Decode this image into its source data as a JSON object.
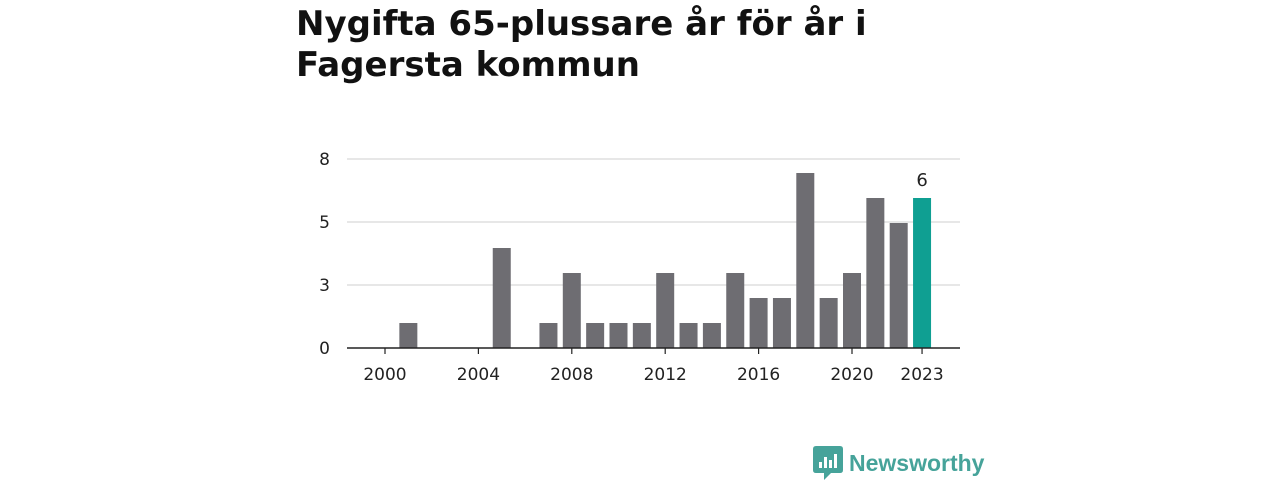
{
  "title": "Nygifta 65-plussare år för år i Fagersta kommun",
  "brand": {
    "name": "Newsworthy",
    "icon": "newsworthy-logo-icon",
    "color": "#46a39a"
  },
  "colors": {
    "bar": "#6e6d72",
    "highlight": "#0f9f92",
    "grid": "#cfcfcf",
    "axis": "#222222",
    "text": "#222222"
  },
  "chart_data": {
    "type": "bar",
    "title": "Nygifta 65-plussare år för år i Fagersta kommun",
    "xlabel": "",
    "ylabel": "",
    "x": [
      2000,
      2001,
      2002,
      2003,
      2004,
      2005,
      2006,
      2007,
      2008,
      2009,
      2010,
      2011,
      2012,
      2013,
      2014,
      2015,
      2016,
      2017,
      2018,
      2019,
      2020,
      2021,
      2022,
      2023
    ],
    "values": [
      0,
      1,
      0,
      0,
      0,
      4,
      0,
      1,
      3,
      1,
      1,
      1,
      3,
      1,
      1,
      3,
      2,
      2,
      7,
      2,
      3,
      6,
      5,
      6
    ],
    "x_ticks": [
      2000,
      2004,
      2008,
      2012,
      2016,
      2020,
      2023
    ],
    "y_ticks": [
      0,
      3,
      5,
      8
    ],
    "ylim": [
      0,
      7.5
    ],
    "highlight": {
      "x": 2023,
      "label": "6"
    },
    "grid": true
  }
}
